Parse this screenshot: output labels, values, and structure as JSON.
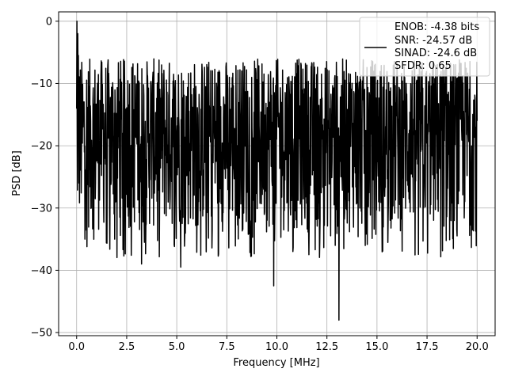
{
  "chart_data": {
    "type": "line",
    "title": "",
    "xlabel": "Frequency [MHz]",
    "ylabel": "PSD [dB]",
    "xlim": [
      -0.9,
      20.9
    ],
    "ylim": [
      -50.5,
      1.5
    ],
    "xticks": [
      0.0,
      2.5,
      5.0,
      7.5,
      10.0,
      12.5,
      15.0,
      17.5,
      20.0
    ],
    "xtick_labels": [
      "0.0",
      "2.5",
      "5.0",
      "7.5",
      "10.0",
      "12.5",
      "15.0",
      "17.5",
      "20.0"
    ],
    "yticks": [
      0,
      -10,
      -20,
      -30,
      -40,
      -50
    ],
    "ytick_labels": [
      "0",
      "−10",
      "−20",
      "−30",
      "−40",
      "−50"
    ],
    "grid": true,
    "legend_position": "top-right",
    "series": [
      {
        "color": "#000000",
        "x_range": [
          0.0,
          20.0
        ],
        "noise_floor_db": [
          -34,
          -6
        ],
        "peaks": [
          {
            "x": 0.02,
            "y": 0.0
          },
          {
            "x": 0.05,
            "y": -2.0
          },
          {
            "x": 0.08,
            "y": -5.5
          },
          {
            "x": 9.85,
            "y": -42.5
          },
          {
            "x": 13.1,
            "y": -48.0
          },
          {
            "x": 5.2,
            "y": -39.5
          },
          {
            "x": 3.25,
            "y": -39.0
          }
        ]
      }
    ],
    "legend_entries": [
      "ENOB: -4.38 bits",
      "SNR: -24.57 dB",
      "SINAD: -24.6 dB",
      "SFDR: 0.65"
    ]
  }
}
